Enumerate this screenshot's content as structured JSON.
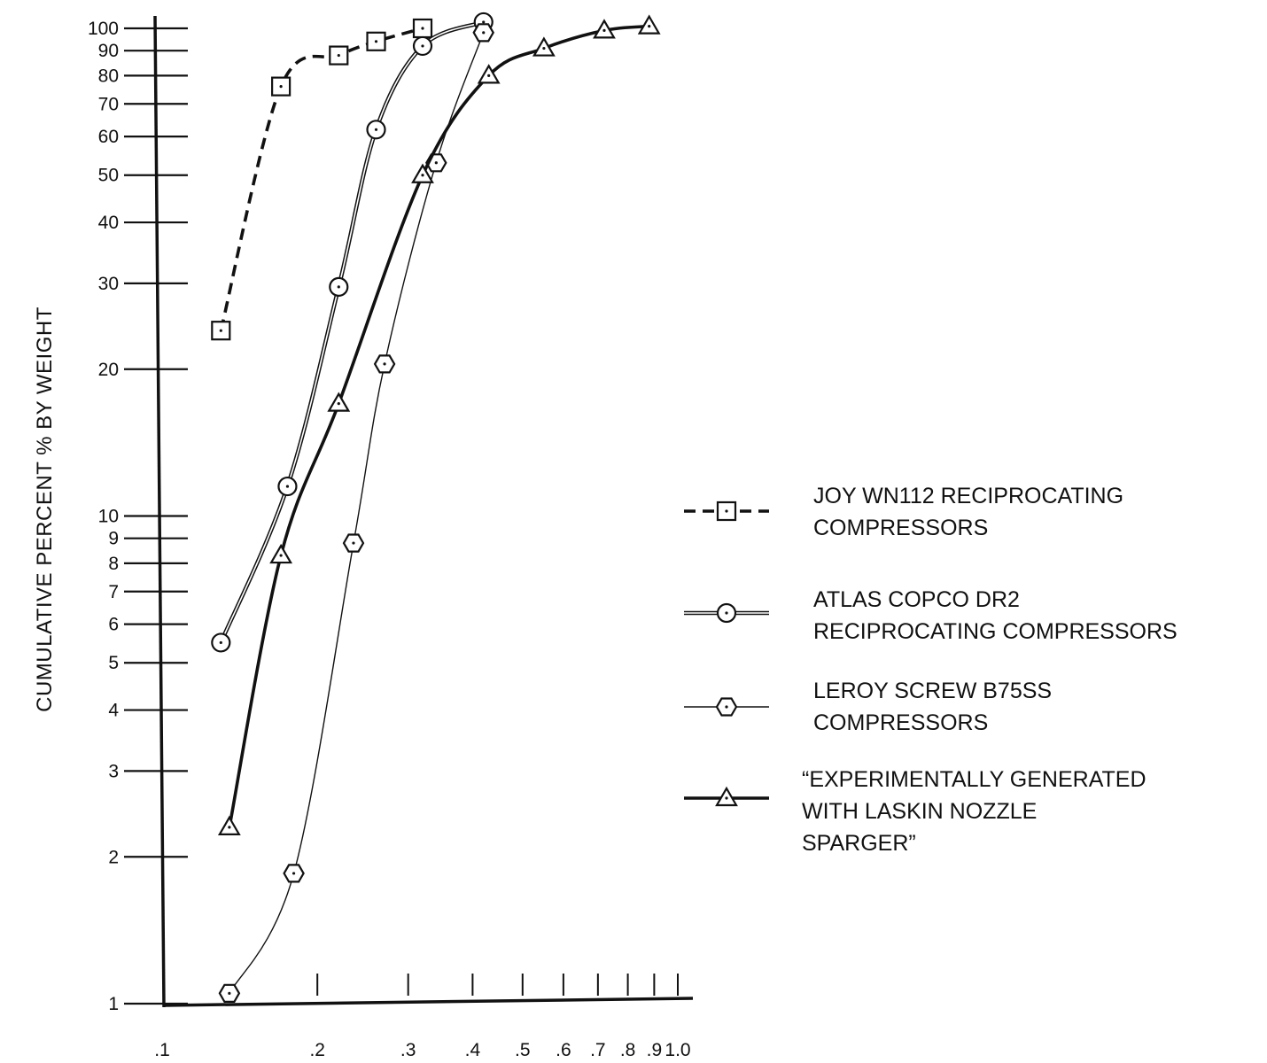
{
  "chart_data": {
    "type": "line",
    "title": "",
    "xlabel": "",
    "ylabel": "CUMULATIVE PERCENT % BY WEIGHT",
    "x_scale": "log",
    "y_scale": "log",
    "xlim": [
      0.1,
      1.0
    ],
    "ylim": [
      1,
      100
    ],
    "grid": false,
    "legend_position": "right",
    "x_ticks": [
      0.1,
      0.2,
      0.3,
      0.4,
      0.5,
      0.6,
      0.7,
      0.8,
      0.9,
      1.0
    ],
    "x_tick_labels": [
      ".1",
      ".2",
      ".3",
      ".4",
      ".5",
      ".6",
      ".7",
      ".8",
      ".9",
      "1.0"
    ],
    "y_ticks": [
      1,
      2,
      3,
      4,
      5,
      6,
      7,
      8,
      9,
      10,
      20,
      30,
      40,
      50,
      60,
      70,
      80,
      90,
      100
    ],
    "y_tick_labels": [
      "1",
      "2",
      "3",
      "4",
      "5",
      "6",
      "7",
      "8",
      "9",
      "10",
      "20",
      "30",
      "40",
      "50",
      "60",
      "70",
      "80",
      "90",
      "100"
    ],
    "series": [
      {
        "name": "JOY WN112 RECIPROCATING COMPRESSORS",
        "legend_lines": [
          "JOY WN112 RECIPROCATING",
          "COMPRESSORS"
        ],
        "marker": "square",
        "line_style": "dashed",
        "x": [
          0.13,
          0.17,
          0.22,
          0.26,
          0.32
        ],
        "y": [
          24,
          76,
          88,
          94,
          100
        ]
      },
      {
        "name": "ATLAS COPCO DR2 RECIPROCATING COMPRESSORS",
        "legend_lines": [
          "ATLAS COPCO DR2",
          "RECIPROCATING COMPRESSORS"
        ],
        "marker": "circle",
        "line_style": "double",
        "x": [
          0.13,
          0.175,
          0.22,
          0.26,
          0.32,
          0.42
        ],
        "y": [
          5.5,
          11.5,
          29.5,
          62,
          92,
          103
        ]
      },
      {
        "name": "LEROY SCREW B75SS COMPRESSORS",
        "legend_lines": [
          "LEROY SCREW B75SS",
          "COMPRESSORS"
        ],
        "marker": "hexagon",
        "line_style": "thin",
        "x": [
          0.135,
          0.18,
          0.235,
          0.27,
          0.34,
          0.42
        ],
        "y": [
          1.05,
          1.85,
          8.8,
          20.5,
          53,
          98
        ]
      },
      {
        "name": "\"EXPERIMENTALLY GENERATED WITH LASKIN NOZZLE SPARGER\"",
        "legend_lines": [
          "“EXPERIMENTALLY GENERATED",
          "WITH LASKIN NOZZLE",
          "SPARGER”"
        ],
        "marker": "triangle",
        "line_style": "thick",
        "x": [
          0.135,
          0.17,
          0.22,
          0.32,
          0.43,
          0.55,
          0.72,
          0.88
        ],
        "y": [
          2.3,
          8.3,
          17,
          50,
          80,
          91,
          99,
          101
        ]
      }
    ]
  },
  "colors": {
    "ink": "#111111",
    "background": "#ffffff"
  }
}
